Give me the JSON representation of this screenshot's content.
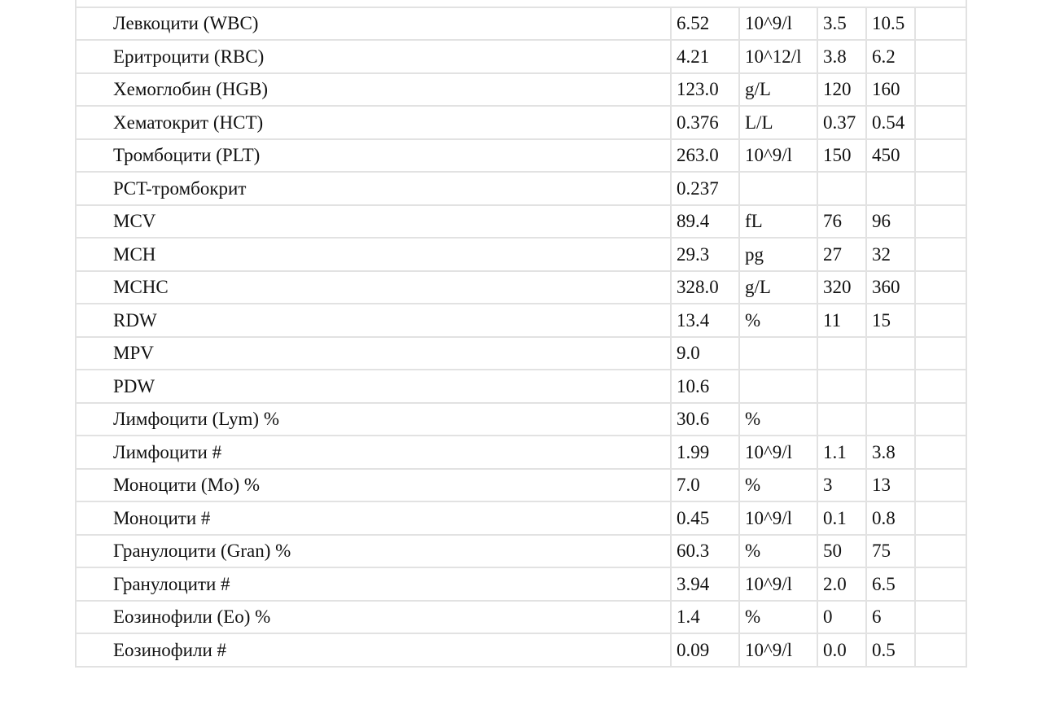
{
  "partial_header": "",
  "rows": [
    {
      "name": "Левкоцити (WBC)",
      "value": "6.52",
      "unit": "10^9/l",
      "min": "3.5",
      "max": "10.5",
      "flag": ""
    },
    {
      "name": "Еритроцити (RBC)",
      "value": "4.21",
      "unit": "10^12/l",
      "min": "3.8",
      "max": "6.2",
      "flag": ""
    },
    {
      "name": "Хемоглобин (HGB)",
      "value": "123.0",
      "unit": "g/L",
      "min": "120",
      "max": "160",
      "flag": ""
    },
    {
      "name": "Хематокрит (HCT)",
      "value": "0.376",
      "unit": "L/L",
      "min": "0.37",
      "max": "0.54",
      "flag": ""
    },
    {
      "name": "Тромбоцити (PLT)",
      "value": "263.0",
      "unit": "10^9/l",
      "min": "150",
      "max": "450",
      "flag": ""
    },
    {
      "name": "PCT-тромбокрит",
      "value": "0.237",
      "unit": "",
      "min": "",
      "max": "",
      "flag": ""
    },
    {
      "name": "MCV",
      "value": "89.4",
      "unit": "fL",
      "min": "76",
      "max": "96",
      "flag": ""
    },
    {
      "name": "MCH",
      "value": "29.3",
      "unit": "pg",
      "min": "27",
      "max": "32",
      "flag": ""
    },
    {
      "name": "MCHC",
      "value": "328.0",
      "unit": "g/L",
      "min": "320",
      "max": "360",
      "flag": ""
    },
    {
      "name": "RDW",
      "value": "13.4",
      "unit": "%",
      "min": "11",
      "max": "15",
      "flag": ""
    },
    {
      "name": "MPV",
      "value": "9.0",
      "unit": "",
      "min": "",
      "max": "",
      "flag": ""
    },
    {
      "name": "PDW",
      "value": "10.6",
      "unit": "",
      "min": "",
      "max": "",
      "flag": ""
    },
    {
      "name": "Лимфоцити (Lym) %",
      "value": "30.6",
      "unit": "%",
      "min": "",
      "max": "",
      "flag": ""
    },
    {
      "name": "Лимфоцити #",
      "value": "1.99",
      "unit": "10^9/l",
      "min": "1.1",
      "max": "3.8",
      "flag": ""
    },
    {
      "name": "Моноцити (Mo) %",
      "value": "7.0",
      "unit": "%",
      "min": "3",
      "max": "13",
      "flag": ""
    },
    {
      "name": "Моноцити #",
      "value": "0.45",
      "unit": "10^9/l",
      "min": "0.1",
      "max": "0.8",
      "flag": ""
    },
    {
      "name": "Гранулоцити (Gran) %",
      "value": "60.3",
      "unit": "%",
      "min": "50",
      "max": "75",
      "flag": ""
    },
    {
      "name": "Гранулоцити #",
      "value": "3.94",
      "unit": "10^9/l",
      "min": "2.0",
      "max": "6.5",
      "flag": ""
    },
    {
      "name": "Еозинофили (Eo) %",
      "value": "1.4",
      "unit": "%",
      "min": "0",
      "max": "6",
      "flag": ""
    },
    {
      "name": "Еозинофили #",
      "value": "0.09",
      "unit": "10^9/l",
      "min": "0.0",
      "max": "0.5",
      "flag": ""
    }
  ]
}
